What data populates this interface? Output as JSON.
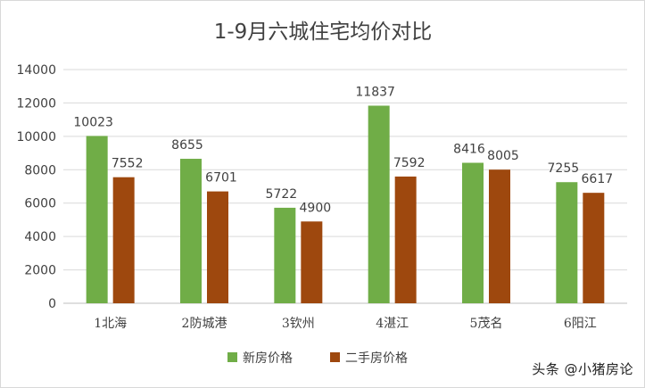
{
  "chart_data": {
    "type": "bar",
    "title": "1-9月六城住宅均价对比",
    "categories": [
      "1北海",
      "2防城港",
      "3钦州",
      "4湛江",
      "5茂名",
      "6阳江"
    ],
    "series": [
      {
        "name": "新房价格",
        "color": "#70ad47",
        "values": [
          10023,
          8655,
          5722,
          11837,
          8416,
          7255
        ]
      },
      {
        "name": "二手房价格",
        "color": "#9e480e",
        "values": [
          7552,
          6701,
          4900,
          7592,
          8005,
          6617
        ]
      }
    ],
    "ylim": [
      0,
      14000
    ],
    "yticks": [
      0,
      2000,
      4000,
      6000,
      8000,
      10000,
      12000,
      14000
    ],
    "grid": true,
    "legend": "bottom",
    "data_labels": true
  },
  "watermark": "头条 @小猪房论"
}
